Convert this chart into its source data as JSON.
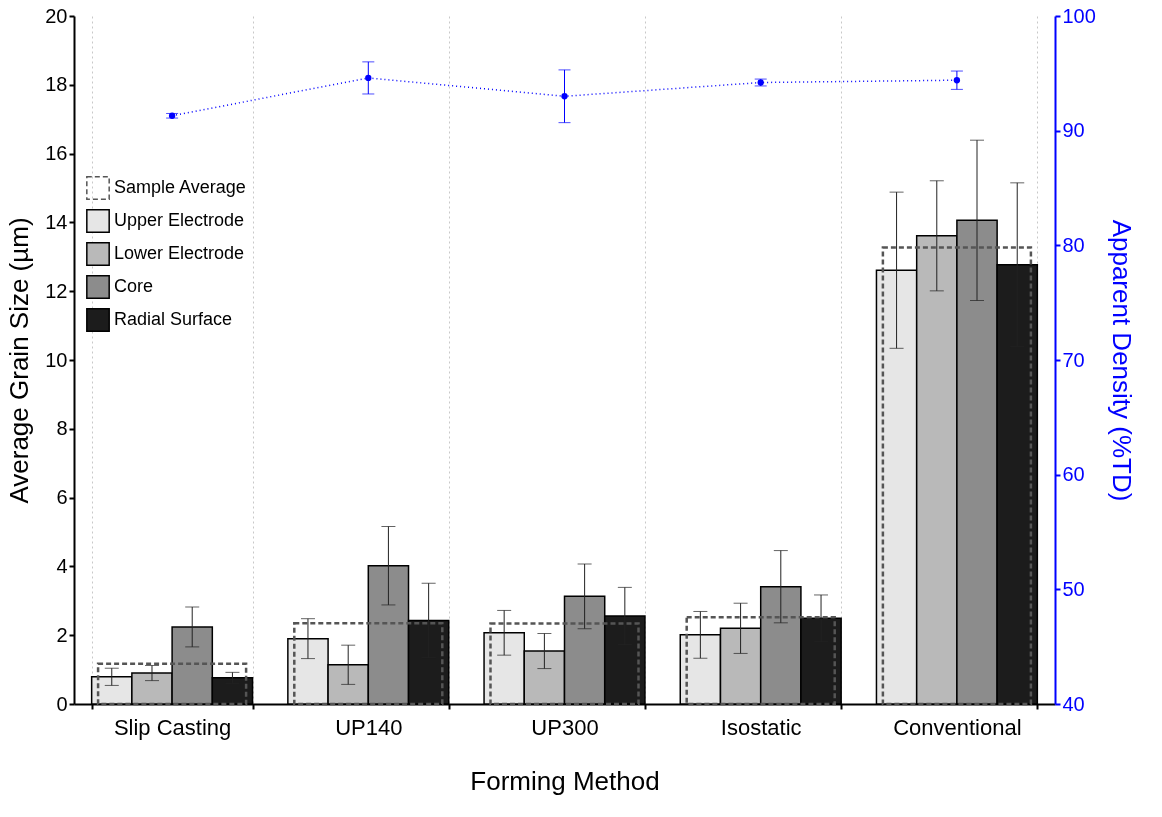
{
  "chart_data": {
    "type": "bar",
    "xlabel": "Forming Method",
    "ylabel": "Average Grain Size (µm)",
    "y2label": "Apparent Density (%TD)",
    "categories": [
      "Slip Casting",
      "UP140",
      "UP300",
      "Isostatic",
      "Conventional"
    ],
    "series": [
      {
        "name": "Sample Average",
        "type": "bar",
        "color": "#555555",
        "line_style": "dashed",
        "values": [
          1.17,
          2.35,
          2.34,
          2.52,
          13.27
        ]
      },
      {
        "name": "Upper Electrode",
        "type": "bar",
        "color": "#e6e6e6",
        "values": [
          0.79,
          1.9,
          2.07,
          2.01,
          12.61
        ],
        "errors": [
          0.25,
          0.58,
          0.65,
          0.68,
          2.27
        ]
      },
      {
        "name": "Lower Electrode",
        "type": "bar",
        "color": "#b9b9b9",
        "values": [
          0.9,
          1.14,
          1.54,
          2.2,
          13.61
        ],
        "errors": [
          0.22,
          0.57,
          0.51,
          0.73,
          1.6
        ]
      },
      {
        "name": "Core",
        "type": "bar",
        "color": "#8c8c8c",
        "values": [
          2.24,
          4.02,
          3.13,
          3.41,
          14.06
        ],
        "errors": [
          0.58,
          1.14,
          0.94,
          1.05,
          2.33
        ]
      },
      {
        "name": "Radial Surface",
        "type": "bar",
        "color": "#1c1c1c",
        "values": [
          0.76,
          2.43,
          2.56,
          2.49,
          12.77
        ],
        "errors": [
          0.16,
          1.08,
          0.83,
          0.68,
          2.38
        ]
      },
      {
        "type": "line",
        "axis": "y2",
        "color": "#0000ff",
        "line_style": "dotted",
        "marker": "circle",
        "values": [
          91.3,
          94.6,
          93.0,
          94.2,
          94.4
        ],
        "errors": [
          0.2,
          1.4,
          2.3,
          0.3,
          0.8
        ]
      }
    ],
    "ylim": [
      0,
      20
    ],
    "yticks": [
      0,
      2,
      4,
      6,
      8,
      10,
      12,
      14,
      16,
      18,
      20
    ],
    "y2lim": [
      40,
      100
    ],
    "y2ticks": [
      40,
      50,
      60,
      70,
      80,
      90,
      100
    ],
    "grid": "x",
    "legend": "top left"
  }
}
